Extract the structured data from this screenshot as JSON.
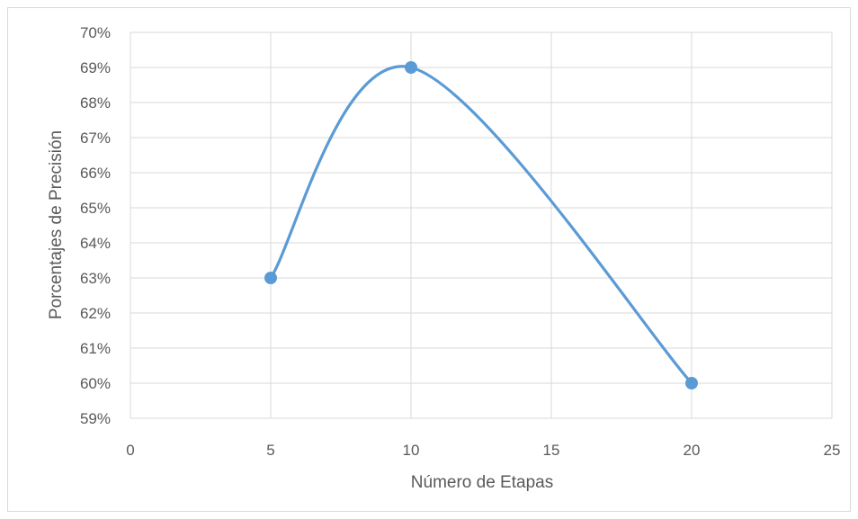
{
  "chart_data": {
    "type": "scatter",
    "title": "",
    "xlabel": "Número de Etapas",
    "ylabel": "Porcentajes de Precisión",
    "xlim": [
      0,
      25
    ],
    "ylim": [
      0.59,
      0.7
    ],
    "x_ticks": [
      "0",
      "5",
      "10",
      "15",
      "20",
      "25"
    ],
    "y_ticks": [
      "59%",
      "60%",
      "61%",
      "62%",
      "63%",
      "64%",
      "65%",
      "66%",
      "67%",
      "68%",
      "69%",
      "70%"
    ],
    "grid": true,
    "smooth_line": true,
    "series": [
      {
        "x": [
          5,
          10,
          20
        ],
        "y": [
          0.63,
          0.69,
          0.6
        ],
        "color": "#5b9bd5"
      }
    ]
  }
}
